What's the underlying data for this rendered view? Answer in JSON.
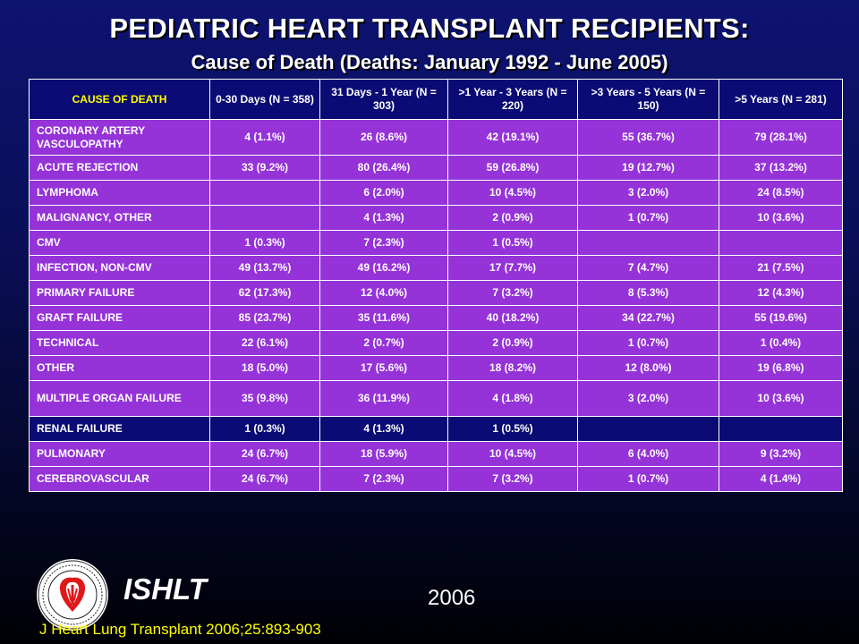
{
  "title": "PEDIATRIC HEART TRANSPLANT RECIPIENTS:",
  "subtitle": "Cause of Death (Deaths: January 1992 - June 2005)",
  "chart_data": {
    "type": "table",
    "columns": [
      "CAUSE OF DEATH",
      "0-30 Days (N = 358)",
      "31 Days - 1 Year (N = 303)",
      ">1 Year - 3 Years (N = 220)",
      ">3 Years - 5 Years (N = 150)",
      ">5 Years (N = 281)"
    ],
    "rows": [
      [
        "CORONARY ARTERY VASCULOPATHY",
        "4 (1.1%)",
        "26 (8.6%)",
        "42 (19.1%)",
        "55 (36.7%)",
        "79 (28.1%)"
      ],
      [
        "ACUTE REJECTION",
        "33 (9.2%)",
        "80 (26.4%)",
        "59 (26.8%)",
        "19 (12.7%)",
        "37 (13.2%)"
      ],
      [
        "LYMPHOMA",
        "",
        "6 (2.0%)",
        "10 (4.5%)",
        "3 (2.0%)",
        "24 (8.5%)"
      ],
      [
        "MALIGNANCY, OTHER",
        "",
        "4 (1.3%)",
        "2 (0.9%)",
        "1 (0.7%)",
        "10 (3.6%)"
      ],
      [
        "CMV",
        "1 (0.3%)",
        "7 (2.3%)",
        "1 (0.5%)",
        "",
        ""
      ],
      [
        "INFECTION, NON-CMV",
        "49 (13.7%)",
        "49 (16.2%)",
        "17 (7.7%)",
        "7 (4.7%)",
        "21 (7.5%)"
      ],
      [
        "PRIMARY FAILURE",
        "62 (17.3%)",
        "12 (4.0%)",
        "7 (3.2%)",
        "8 (5.3%)",
        "12 (4.3%)"
      ],
      [
        "GRAFT FAILURE",
        "85 (23.7%)",
        "35 (11.6%)",
        "40 (18.2%)",
        "34 (22.7%)",
        "55 (19.6%)"
      ],
      [
        "TECHNICAL",
        "22 (6.1%)",
        "2 (0.7%)",
        "2 (0.9%)",
        "1 (0.7%)",
        "1 (0.4%)"
      ],
      [
        "OTHER",
        "18 (5.0%)",
        "17 (5.6%)",
        "18 (8.2%)",
        "12 (8.0%)",
        "19 (6.8%)"
      ],
      [
        "MULTIPLE ORGAN FAILURE",
        "35 (9.8%)",
        "36 (11.9%)",
        "4 (1.8%)",
        "3 (2.0%)",
        "10 (3.6%)"
      ],
      [
        "RENAL FAILURE",
        "1 (0.3%)",
        "4 (1.3%)",
        "1 (0.5%)",
        "",
        ""
      ],
      [
        "PULMONARY",
        "24 (6.7%)",
        "18 (5.9%)",
        "10 (4.5%)",
        "6 (4.0%)",
        "9 (3.2%)"
      ],
      [
        "CEREBROVASCULAR",
        "24 (6.7%)",
        "7 (2.3%)",
        "7 (3.2%)",
        "1 (0.7%)",
        "4 (1.4%)"
      ]
    ]
  },
  "row_styles": [
    "purple",
    "purple",
    "purple",
    "purple",
    "purple",
    "purple",
    "purple",
    "purple",
    "purple",
    "purple",
    "purple",
    "navy",
    "purple",
    "purple"
  ],
  "colors": {
    "purple_row": "#9533d8",
    "navy_row": "#0b0b75",
    "header_bg": "#0b0b75",
    "header_cause_text": "#ffff00",
    "text": "#ffffff",
    "citation": "#ffff00"
  },
  "logo": {
    "icon": "international-society-heart-lung-transplantation-seal",
    "text": "INTERNATIONAL SOCIETY FOR HEART & LUNG TRANSPLANTATION"
  },
  "brand": "ISHLT",
  "year": "2006",
  "citation": "J Heart Lung Transplant 2006;25:893-903"
}
